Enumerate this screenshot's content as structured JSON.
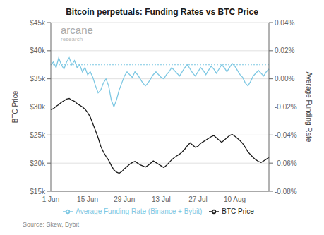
{
  "chart_data": {
    "type": "line",
    "title": "Bitcoin perpetuals: Funding Rates vs BTC Price",
    "ylabel": "BTC Price",
    "y2label": "Average Funding Rate",
    "source": "Source: Skew, Bybit",
    "annotations": [
      "arcane",
      "research"
    ],
    "categories": [
      "1 Jun",
      null,
      null,
      null,
      null,
      null,
      null,
      null,
      null,
      null,
      null,
      null,
      null,
      null,
      "15 Jun",
      null,
      null,
      null,
      null,
      null,
      null,
      null,
      null,
      null,
      null,
      null,
      null,
      null,
      "29 Jun",
      null,
      null,
      null,
      null,
      null,
      null,
      null,
      null,
      null,
      null,
      null,
      null,
      null,
      "13 Jul",
      null,
      null,
      null,
      null,
      null,
      null,
      null,
      null,
      null,
      null,
      null,
      null,
      null,
      "27 Jul",
      null,
      null,
      null,
      null,
      null,
      null,
      null,
      null,
      null,
      null,
      null,
      null,
      null,
      "10 Aug",
      null,
      null,
      null,
      null,
      null,
      null,
      null,
      null,
      null,
      null,
      null,
      null,
      null
    ],
    "series": [
      {
        "name": "BTC Price",
        "color": "#1a1a1a",
        "axis": "y",
        "values": [
          29500,
          29700,
          30100,
          30400,
          30800,
          31100,
          31400,
          31500,
          31200,
          31000,
          30600,
          30300,
          30000,
          29600,
          29000,
          28200,
          27000,
          25800,
          24500,
          23000,
          22000,
          21200,
          20500,
          19600,
          18800,
          18400,
          18200,
          18500,
          19000,
          19400,
          19800,
          20100,
          20300,
          20000,
          19700,
          19500,
          19300,
          19600,
          20000,
          20400,
          20100,
          19800,
          19500,
          19200,
          19600,
          20100,
          20600,
          21000,
          21300,
          21600,
          22000,
          22500,
          23100,
          23600,
          23200,
          22800,
          23000,
          23500,
          23800,
          24100,
          24400,
          24700,
          24900,
          24500,
          24100,
          23700,
          24100,
          24500,
          24900,
          25100,
          24800,
          24400,
          24000,
          23500,
          22800,
          22000,
          21500,
          21000,
          20600,
          20300,
          20100,
          20400,
          20700,
          21000
        ]
      },
      {
        "name": "Average Funding Rate (Binance + Bybit)",
        "color": "#7EC8E3",
        "axis": "y2",
        "values": [
          0.0001,
          0.00012,
          8e-05,
          0.00015,
          0.0001,
          7e-05,
          0.00012,
          0.00015,
          0.0001,
          0.00013,
          8e-05,
          0.0001,
          5e-05,
          8e-05,
          3e-05,
          5e-05,
          1e-05,
          -5e-05,
          -0.0001,
          -8e-05,
          -3e-05,
          0,
          -5e-05,
          -0.00015,
          -0.0002,
          -0.00015,
          -8e-05,
          -3e-05,
          2e-05,
          5e-05,
          3e-05,
          1e-05,
          5e-05,
          3e-05,
          0,
          -3e-05,
          -5e-05,
          -3e-05,
          0,
          3e-05,
          5e-05,
          3e-05,
          1e-05,
          0,
          3e-05,
          5e-05,
          8e-05,
          6e-05,
          4e-05,
          2e-05,
          5e-05,
          8e-05,
          0.0001,
          7e-05,
          4e-05,
          2e-05,
          5e-05,
          8e-05,
          6e-05,
          3e-05,
          6e-05,
          9e-05,
          7e-05,
          4e-05,
          7e-05,
          0.0001,
          8e-05,
          5e-05,
          8e-05,
          0.00011,
          9e-05,
          6e-05,
          3e-05,
          1e-05,
          -3e-05,
          -5e-05,
          -2e-05,
          2e-05,
          4e-05,
          6e-05,
          4e-05,
          2e-05,
          5e-05,
          7e-05
        ]
      }
    ],
    "hlines": [
      {
        "value": 0.0001,
        "axis": "y2",
        "color": "#7EC8E3",
        "line_style": "dotted"
      }
    ],
    "ylim": [
      15000,
      45000
    ],
    "yticks": [
      {
        "value": 15000,
        "label": "$15k"
      },
      {
        "value": 20000,
        "label": "$20k"
      },
      {
        "value": 25000,
        "label": "$25k"
      },
      {
        "value": 30000,
        "label": "$30k"
      },
      {
        "value": 35000,
        "label": "$35k"
      },
      {
        "value": 40000,
        "label": "$40k"
      },
      {
        "value": 45000,
        "label": "$45k"
      }
    ],
    "y2lim": [
      -0.0008,
      0.0004
    ],
    "y2ticks": [
      {
        "value": -0.0008,
        "label": "-0.08%"
      },
      {
        "value": -0.0006,
        "label": "-0.06%"
      },
      {
        "value": -0.0004,
        "label": "-0.04%"
      },
      {
        "value": -0.0002,
        "label": "-0.02%"
      },
      {
        "value": 0,
        "label": "0.00%"
      },
      {
        "value": 0.0002,
        "label": "0.02%"
      },
      {
        "value": 0.0004,
        "label": "0.04%"
      }
    ],
    "grid": true,
    "legend": "bottom"
  }
}
